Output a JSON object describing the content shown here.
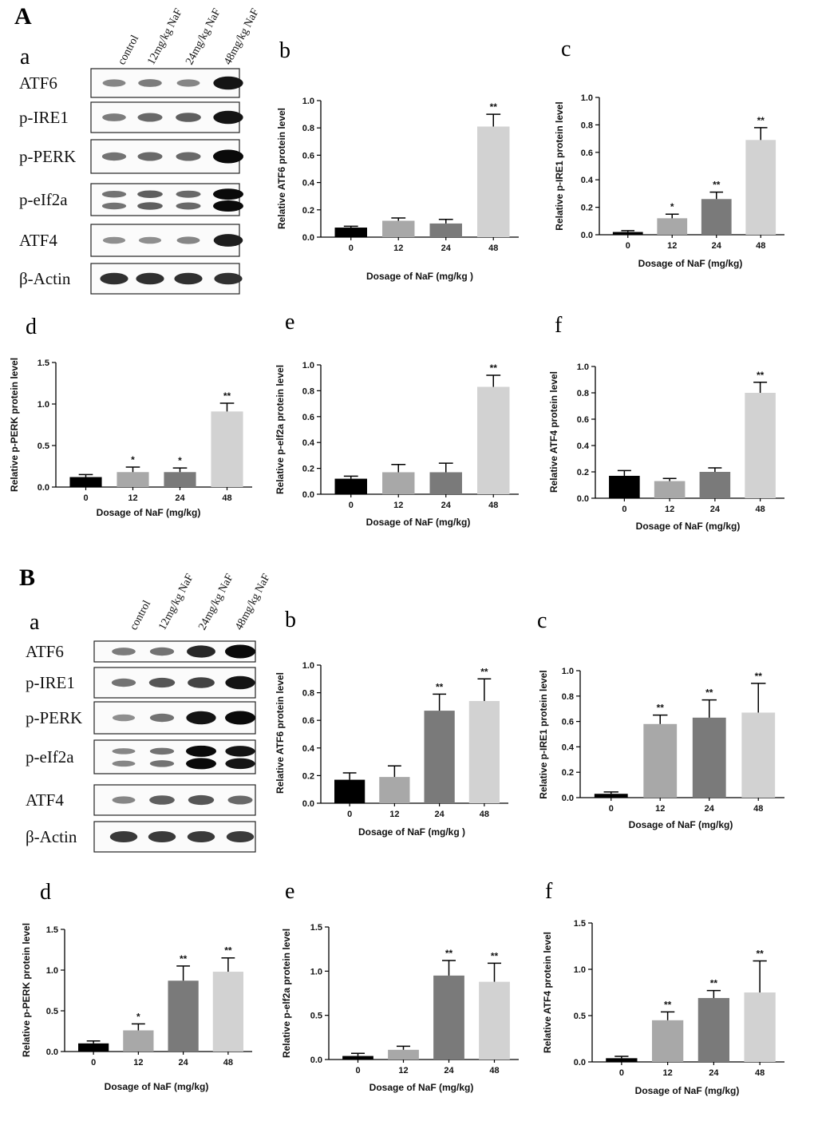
{
  "section_labels": [
    "A",
    "B"
  ],
  "blot_sublabel": "a",
  "lanes": {
    "A": [
      "control",
      "12mg/kg NaF",
      "24mg/kg NaF",
      "48mg/kg NaF"
    ],
    "B": [
      "control",
      "12mg/kg NaF",
      "24mg/kg NaF",
      "48mg/kg NaF"
    ]
  },
  "blot_rows": {
    "A": [
      "ATF6",
      "p-IRE1",
      "p-PERK",
      "p-eIf2a",
      "ATF4",
      "β-Actin"
    ],
    "B": [
      "ATF6",
      "p-IRE1",
      "p-PERK",
      "p-eIf2a",
      "ATF4",
      "β-Actin"
    ]
  },
  "band_intensity": {
    "A": {
      "ATF6": [
        0.35,
        0.4,
        0.35,
        0.95
      ],
      "p-IRE1": [
        0.4,
        0.5,
        0.55,
        0.95
      ],
      "p-PERK": [
        0.45,
        0.5,
        0.5,
        1.0
      ],
      "p-eIf2a": [
        0.45,
        0.55,
        0.5,
        1.0
      ],
      "ATF4": [
        0.3,
        0.3,
        0.35,
        0.9
      ],
      "β-Actin": [
        0.8,
        0.8,
        0.8,
        0.8
      ]
    },
    "B": {
      "ATF6": [
        0.4,
        0.45,
        0.85,
        1.0
      ],
      "p-IRE1": [
        0.45,
        0.6,
        0.7,
        0.95
      ],
      "p-PERK": [
        0.3,
        0.45,
        0.95,
        1.0
      ],
      "p-eIf2a": [
        0.35,
        0.45,
        1.0,
        0.95
      ],
      "ATF4": [
        0.35,
        0.55,
        0.6,
        0.5
      ],
      "β-Actin": [
        0.75,
        0.75,
        0.75,
        0.75
      ]
    }
  },
  "chart_data": [
    {
      "id": "A-b",
      "section": "A",
      "panel": "b",
      "type": "bar",
      "categories": [
        "0",
        "12",
        "24",
        "48"
      ],
      "values": [
        0.07,
        0.12,
        0.1,
        0.81
      ],
      "errors": [
        0.01,
        0.02,
        0.03,
        0.09
      ],
      "significance": [
        "",
        "",
        "",
        "**"
      ],
      "ylabel": "Relative ATF6 protein level",
      "xlabel": "Dosage of NaF (mg/kg )",
      "ylim": [
        0,
        1.0
      ],
      "yticks": [
        "0.0",
        "0.2",
        "0.4",
        "0.6",
        "0.8",
        "1.0"
      ],
      "colors": [
        "#000000",
        "#a8a8a8",
        "#7a7a7a",
        "#d2d2d2"
      ]
    },
    {
      "id": "A-c",
      "section": "A",
      "panel": "c",
      "type": "bar",
      "categories": [
        "0",
        "12",
        "24",
        "48"
      ],
      "values": [
        0.02,
        0.12,
        0.26,
        0.69
      ],
      "errors": [
        0.01,
        0.03,
        0.05,
        0.09
      ],
      "significance": [
        "",
        "*",
        "**",
        "**"
      ],
      "ylabel": "Relative p-IRE1 protein level",
      "xlabel": "Dosage of NaF (mg/kg)",
      "ylim": [
        0,
        1.0
      ],
      "yticks": [
        "0.0",
        "0.2",
        "0.4",
        "0.6",
        "0.8",
        "1.0"
      ],
      "colors": [
        "#000000",
        "#a8a8a8",
        "#7a7a7a",
        "#d2d2d2"
      ]
    },
    {
      "id": "A-d",
      "section": "A",
      "panel": "d",
      "type": "bar",
      "categories": [
        "0",
        "12",
        "24",
        "48"
      ],
      "values": [
        0.12,
        0.18,
        0.18,
        0.91
      ],
      "errors": [
        0.03,
        0.06,
        0.05,
        0.1
      ],
      "significance": [
        "",
        "*",
        "*",
        "**"
      ],
      "ylabel": "Relative p-PERK protein level",
      "xlabel": "Dosage of NaF (mg/kg)",
      "ylim": [
        0,
        1.5
      ],
      "yticks": [
        "0.0",
        "0.5",
        "1.0",
        "1.5"
      ],
      "colors": [
        "#000000",
        "#a8a8a8",
        "#7a7a7a",
        "#d2d2d2"
      ]
    },
    {
      "id": "A-e",
      "section": "A",
      "panel": "e",
      "type": "bar",
      "categories": [
        "0",
        "12",
        "24",
        "48"
      ],
      "values": [
        0.12,
        0.17,
        0.17,
        0.83
      ],
      "errors": [
        0.02,
        0.06,
        0.07,
        0.09
      ],
      "significance": [
        "",
        "",
        "",
        "**"
      ],
      "ylabel": "Relative p-elf2a protein level",
      "xlabel": "Dosage of NaF (mg/kg)",
      "ylim": [
        0,
        1.0
      ],
      "yticks": [
        "0.0",
        "0.2",
        "0.4",
        "0.6",
        "0.8",
        "1.0"
      ],
      "colors": [
        "#000000",
        "#a8a8a8",
        "#7a7a7a",
        "#d2d2d2"
      ]
    },
    {
      "id": "A-f",
      "section": "A",
      "panel": "f",
      "type": "bar",
      "categories": [
        "0",
        "12",
        "24",
        "48"
      ],
      "values": [
        0.17,
        0.13,
        0.2,
        0.8
      ],
      "errors": [
        0.04,
        0.02,
        0.03,
        0.08
      ],
      "significance": [
        "",
        "",
        "",
        "**"
      ],
      "ylabel": "Relative ATF4 protein level",
      "xlabel": "Dosage of NaF (mg/kg)",
      "ylim": [
        0,
        1.0
      ],
      "yticks": [
        "0.0",
        "0.2",
        "0.4",
        "0.6",
        "0.8",
        "1.0"
      ],
      "colors": [
        "#000000",
        "#a8a8a8",
        "#7a7a7a",
        "#d2d2d2"
      ]
    },
    {
      "id": "B-b",
      "section": "B",
      "panel": "b",
      "type": "bar",
      "categories": [
        "0",
        "12",
        "24",
        "48"
      ],
      "values": [
        0.17,
        0.19,
        0.67,
        0.74
      ],
      "errors": [
        0.05,
        0.08,
        0.12,
        0.16
      ],
      "significance": [
        "",
        "",
        "**",
        "**"
      ],
      "ylabel": "Relative ATF6 protein level",
      "xlabel": "Dosage of NaF (mg/kg )",
      "ylim": [
        0,
        1.0
      ],
      "yticks": [
        "0.0",
        "0.2",
        "0.4",
        "0.6",
        "0.8",
        "1.0"
      ],
      "colors": [
        "#000000",
        "#a8a8a8",
        "#7a7a7a",
        "#d2d2d2"
      ]
    },
    {
      "id": "B-c",
      "section": "B",
      "panel": "c",
      "type": "bar",
      "categories": [
        "0",
        "12",
        "24",
        "48"
      ],
      "values": [
        0.03,
        0.58,
        0.63,
        0.67
      ],
      "errors": [
        0.015,
        0.07,
        0.14,
        0.23
      ],
      "significance": [
        "",
        "**",
        "**",
        "**"
      ],
      "ylabel": "Relative p-IRE1 protein level",
      "xlabel": "Dosage of NaF (mg/kg)",
      "ylim": [
        0,
        1.0
      ],
      "yticks": [
        "0.0",
        "0.2",
        "0.4",
        "0.6",
        "0.8",
        "1.0"
      ],
      "colors": [
        "#000000",
        "#a8a8a8",
        "#7a7a7a",
        "#d2d2d2"
      ]
    },
    {
      "id": "B-d",
      "section": "B",
      "panel": "d",
      "type": "bar",
      "categories": [
        "0",
        "12",
        "24",
        "48"
      ],
      "values": [
        0.1,
        0.26,
        0.87,
        0.98
      ],
      "errors": [
        0.03,
        0.08,
        0.18,
        0.17
      ],
      "significance": [
        "",
        "*",
        "**",
        "**"
      ],
      "ylabel": "Relative p-PERK protein level",
      "xlabel": "Dosage of NaF (mg/kg)",
      "ylim": [
        0,
        1.5
      ],
      "yticks": [
        "0.0",
        "0.5",
        "1.0",
        "1.5"
      ],
      "colors": [
        "#000000",
        "#a8a8a8",
        "#7a7a7a",
        "#d2d2d2"
      ]
    },
    {
      "id": "B-e",
      "section": "B",
      "panel": "e",
      "type": "bar",
      "categories": [
        "0",
        "12",
        "24",
        "48"
      ],
      "values": [
        0.04,
        0.11,
        0.95,
        0.88
      ],
      "errors": [
        0.03,
        0.04,
        0.17,
        0.21
      ],
      "significance": [
        "",
        "",
        "**",
        "**"
      ],
      "ylabel": "Relative p-elf2a protein level",
      "xlabel": "Dosage of NaF (mg/kg)",
      "ylim": [
        0,
        1.5
      ],
      "yticks": [
        "0.0",
        "0.5",
        "1.0",
        "1.5"
      ],
      "colors": [
        "#000000",
        "#a8a8a8",
        "#7a7a7a",
        "#d2d2d2"
      ]
    },
    {
      "id": "B-f",
      "section": "B",
      "panel": "f",
      "type": "bar",
      "categories": [
        "0",
        "12",
        "24",
        "48"
      ],
      "values": [
        0.04,
        0.45,
        0.69,
        0.75
      ],
      "errors": [
        0.02,
        0.09,
        0.08,
        0.34
      ],
      "significance": [
        "",
        "**",
        "**",
        "**"
      ],
      "ylabel": "Relative ATF4 protein level",
      "xlabel": "Dosage of NaF (mg/kg)",
      "ylim": [
        0,
        1.5
      ],
      "yticks": [
        "0.0",
        "0.5",
        "1.0",
        "1.5"
      ],
      "colors": [
        "#000000",
        "#a8a8a8",
        "#7a7a7a",
        "#d2d2d2"
      ]
    }
  ]
}
